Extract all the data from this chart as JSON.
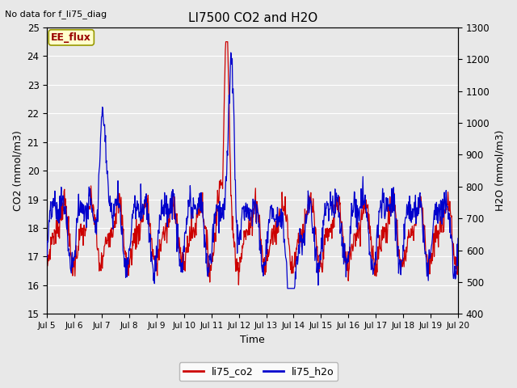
{
  "title": "LI7500 CO2 and H2O",
  "top_left_text": "No data for f_li75_diag",
  "xlabel": "Time",
  "ylabel_left": "CO2 (mmol/m3)",
  "ylabel_right": "H2O (mmol/m3)",
  "ylim_left": [
    15.0,
    25.0
  ],
  "ylim_right": [
    400,
    1300
  ],
  "yticks_left": [
    15.0,
    16.0,
    17.0,
    18.0,
    19.0,
    20.0,
    21.0,
    22.0,
    23.0,
    24.0,
    25.0
  ],
  "yticks_right": [
    400,
    500,
    600,
    700,
    800,
    900,
    1000,
    1100,
    1200,
    1300
  ],
  "xtick_labels": [
    "Jul 5",
    "Jul 6",
    "Jul 7",
    "Jul 8",
    "Jul 9",
    "Jul 10",
    "Jul 11",
    "Jul 12",
    "Jul 13",
    "Jul 14",
    "Jul 15",
    "Jul 16",
    "Jul 17",
    "Jul 18",
    "Jul 19",
    "Jul 20"
  ],
  "co2_color": "#cc0000",
  "h2o_color": "#0000cc",
  "legend_label_co2": "li75_co2",
  "legend_label_h2o": "li75_h2o",
  "ee_flux_label": "EE_flux",
  "ee_flux_bg": "#ffffcc",
  "ee_flux_border": "#999900",
  "ee_flux_text_color": "#990000",
  "bg_color": "#e8e8e8",
  "plot_bg_color": "#e8e8e8",
  "grid_color": "#ffffff",
  "n_days": 15,
  "n_points": 900
}
